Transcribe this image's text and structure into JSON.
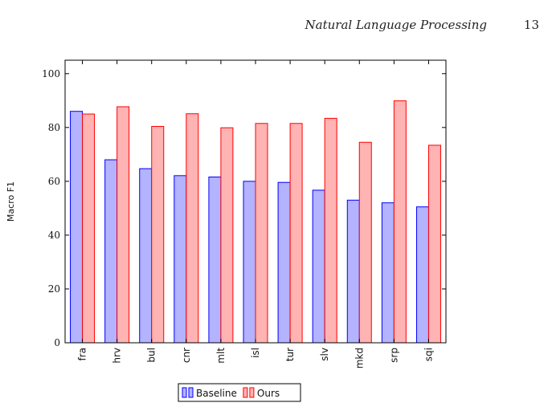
{
  "header": {
    "journal": "Natural Language Processing",
    "page_number": "13"
  },
  "chart_data": {
    "type": "bar",
    "categories": [
      "fra",
      "hrv",
      "bul",
      "cnr",
      "mlt",
      "isl",
      "tur",
      "slv",
      "mkd",
      "srp",
      "sqi"
    ],
    "series": [
      {
        "name": "Baseline",
        "values": [
          86.0,
          68.0,
          64.7,
          62.1,
          61.6,
          60.0,
          59.6,
          56.7,
          53.0,
          52.0,
          50.5
        ],
        "fill": "#b3b3ff",
        "stroke": "#0000ff"
      },
      {
        "name": "Ours",
        "values": [
          85.0,
          87.7,
          80.4,
          85.1,
          79.9,
          81.5,
          81.5,
          83.4,
          74.5,
          89.9,
          73.4
        ],
        "fill": "#ffb3b3",
        "stroke": "#ff0000"
      }
    ],
    "title": "",
    "xlabel": "",
    "ylabel": "Macro F1",
    "ylim": [
      0,
      105
    ],
    "yticks": [
      0,
      20,
      40,
      60,
      80,
      100
    ],
    "grid": false,
    "legend_position": "bottom-center"
  }
}
